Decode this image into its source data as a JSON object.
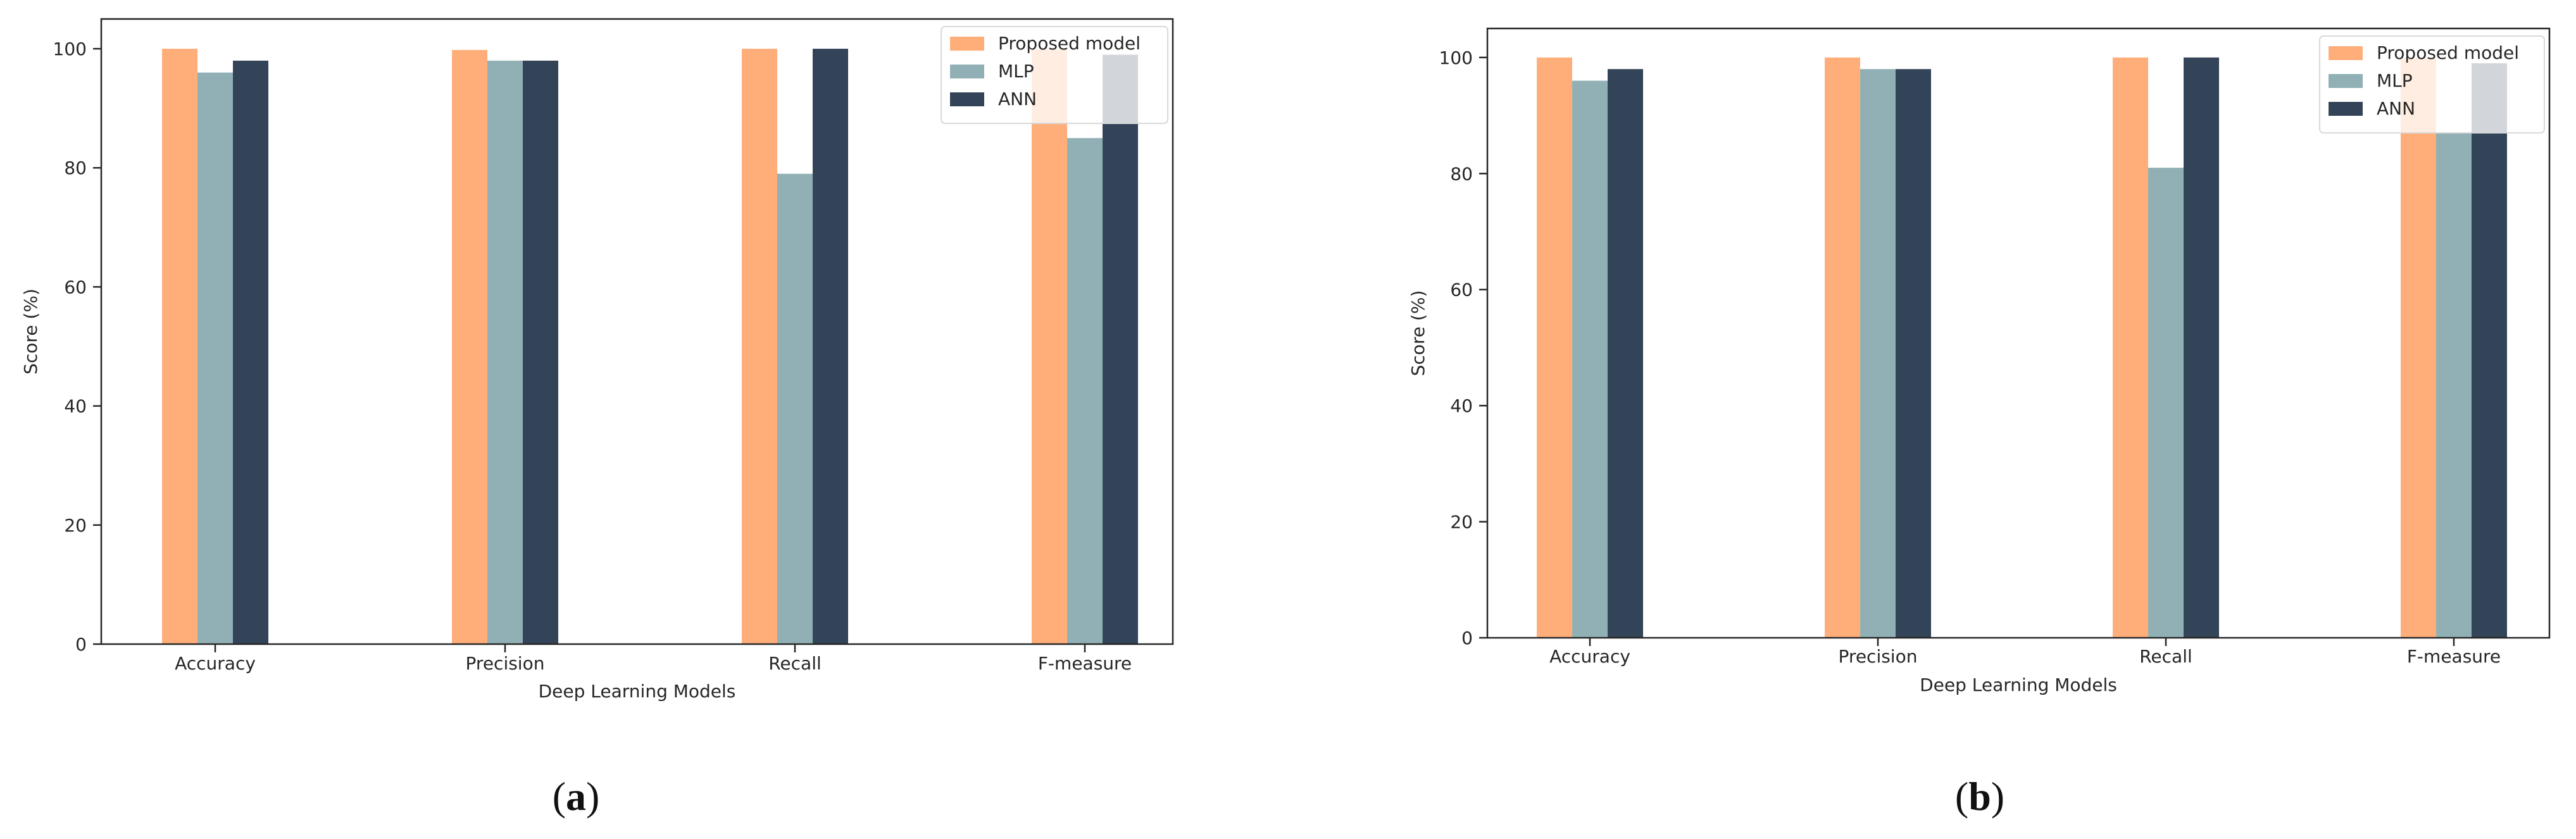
{
  "figure": {
    "series_colors": {
      "Proposed model": "#ffae7a",
      "MLP": "#91b0b5",
      "ANN": "#334358"
    }
  },
  "chart_data": [
    {
      "type": "bar",
      "panel_label": "a",
      "categories": [
        "Accuracy",
        "Precision",
        "Recall",
        "F-measure"
      ],
      "series": [
        {
          "name": "Proposed model",
          "values": [
            100,
            99.8,
            100,
            99.9
          ]
        },
        {
          "name": "MLP",
          "values": [
            96,
            98,
            79,
            85
          ]
        },
        {
          "name": "ANN",
          "values": [
            98,
            98,
            100,
            99
          ]
        }
      ],
      "title": "",
      "xlabel": "Deep Learning Models",
      "ylabel": "Score (%)",
      "ylim": [
        0,
        105
      ],
      "yticks": [
        "0",
        "20",
        "40",
        "60",
        "80",
        "100"
      ],
      "legend": "top-right",
      "grid": false
    },
    {
      "type": "bar",
      "panel_label": "b",
      "categories": [
        "Accuracy",
        "Precision",
        "Recall",
        "F-measure"
      ],
      "series": [
        {
          "name": "Proposed model",
          "values": [
            100,
            100,
            100,
            99.9
          ]
        },
        {
          "name": "MLP",
          "values": [
            96,
            98,
            81,
            87
          ]
        },
        {
          "name": "ANN",
          "values": [
            98,
            98,
            100,
            99
          ]
        }
      ],
      "title": "",
      "xlabel": "Deep Learning Models",
      "ylabel": "Score (%)",
      "ylim": [
        0,
        105
      ],
      "yticks": [
        "0",
        "20",
        "40",
        "60",
        "80",
        "100"
      ],
      "legend": "top-right",
      "grid": false
    }
  ]
}
